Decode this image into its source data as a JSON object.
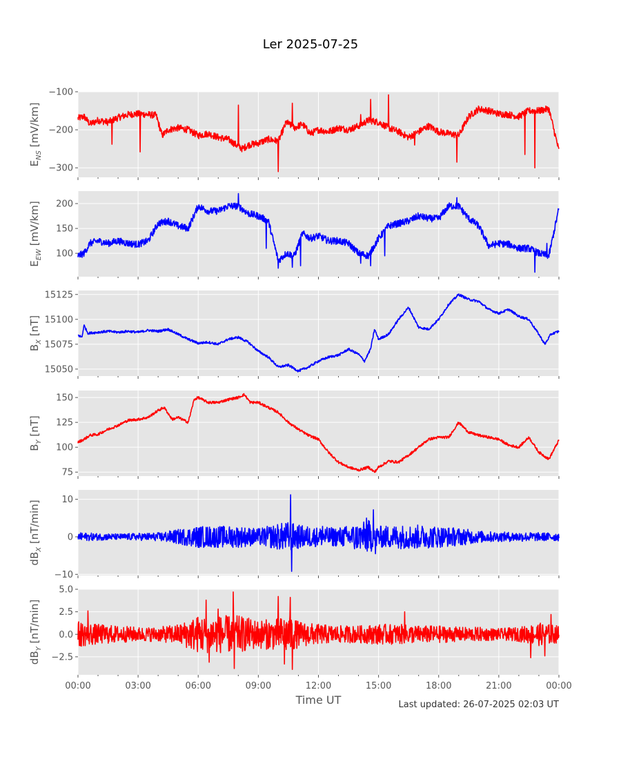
{
  "figure": {
    "title": "Ler 2025-07-25",
    "xlabel": "Time UT",
    "footer": "Last updated: 26-07-2025 02:03 UT"
  },
  "chart_data": [
    {
      "type": "line",
      "id": "ens",
      "ylabel": "E",
      "ylabel_sub": "NS",
      "ylabel_unit": " [mV/km]",
      "color": "#ff0000",
      "ylim": [
        -325,
        -100
      ],
      "yticks": [
        -300,
        -200,
        -100
      ],
      "ytick_labels": [
        "−300",
        "−200",
        "−100"
      ],
      "noise": 9,
      "x": [
        0,
        0.3,
        0.6,
        1.0,
        1.5,
        2.0,
        2.5,
        3.0,
        3.5,
        3.9,
        4.2,
        4.5,
        5.0,
        5.5,
        6.0,
        6.5,
        7.0,
        7.5,
        7.9,
        8.2,
        8.5,
        9.0,
        9.5,
        10.0,
        10.4,
        10.8,
        11.2,
        11.6,
        12.0,
        12.5,
        13.0,
        13.5,
        14.0,
        14.5,
        15.0,
        15.5,
        16.0,
        16.5,
        17.0,
        17.5,
        18.0,
        18.5,
        19.0,
        19.5,
        20.0,
        20.5,
        21.0,
        21.5,
        22.0,
        22.5,
        23.0,
        23.5,
        24.0
      ],
      "y": [
        -170,
        -165,
        -185,
        -175,
        -180,
        -168,
        -160,
        -158,
        -160,
        -162,
        -215,
        -200,
        -195,
        -200,
        -215,
        -210,
        -220,
        -225,
        -240,
        -250,
        -240,
        -235,
        -225,
        -230,
        -180,
        -195,
        -185,
        -210,
        -200,
        -205,
        -195,
        -200,
        -190,
        -175,
        -180,
        -195,
        -205,
        -220,
        -205,
        -190,
        -205,
        -210,
        -215,
        -165,
        -145,
        -150,
        -158,
        -160,
        -165,
        -150,
        -150,
        -145,
        -255
      ],
      "spikes": [
        [
          1.7,
          -238
        ],
        [
          3.1,
          -258
        ],
        [
          8.0,
          -135
        ],
        [
          10.0,
          -310
        ],
        [
          10.7,
          -130
        ],
        [
          14.1,
          -160
        ],
        [
          14.6,
          -120
        ],
        [
          15.5,
          -108
        ],
        [
          16.8,
          -240
        ],
        [
          18.9,
          -285
        ],
        [
          22.3,
          -265
        ],
        [
          22.8,
          -300
        ]
      ]
    },
    {
      "type": "line",
      "id": "eew",
      "ylabel": "E",
      "ylabel_sub": "EW",
      "ylabel_unit": " [mV/km]",
      "color": "#0000ff",
      "ylim": [
        53,
        225
      ],
      "yticks": [
        100,
        150,
        200
      ],
      "ytick_labels": [
        "100",
        "150",
        "200"
      ],
      "noise": 7,
      "x": [
        0,
        0.3,
        0.6,
        1.0,
        1.5,
        2.0,
        2.5,
        3.0,
        3.5,
        4.0,
        4.5,
        5.0,
        5.5,
        6.0,
        6.5,
        7.0,
        7.5,
        8.0,
        8.5,
        9.0,
        9.5,
        10.0,
        10.4,
        10.8,
        11.2,
        11.6,
        12.0,
        12.5,
        13.0,
        13.5,
        14.0,
        14.5,
        15.0,
        15.5,
        16.0,
        16.5,
        17.0,
        17.5,
        18.0,
        18.5,
        19.0,
        19.5,
        20.0,
        20.5,
        21.0,
        21.5,
        22.0,
        22.5,
        23.0,
        23.5,
        24.0
      ],
      "y": [
        95,
        100,
        120,
        125,
        120,
        125,
        120,
        118,
        125,
        160,
        165,
        155,
        150,
        195,
        185,
        185,
        195,
        195,
        180,
        175,
        165,
        85,
        100,
        95,
        140,
        130,
        135,
        125,
        125,
        120,
        100,
        95,
        130,
        155,
        160,
        165,
        175,
        170,
        170,
        195,
        195,
        170,
        155,
        115,
        120,
        118,
        110,
        110,
        100,
        95,
        190
      ],
      "spikes": [
        [
          8.0,
          220
        ],
        [
          9.4,
          110
        ],
        [
          10.0,
          70
        ],
        [
          10.7,
          72
        ],
        [
          11.1,
          75
        ],
        [
          14.1,
          80
        ],
        [
          14.6,
          75
        ],
        [
          15.3,
          95
        ],
        [
          18.9,
          212
        ],
        [
          22.8,
          62
        ],
        [
          23.4,
          120
        ]
      ]
    },
    {
      "type": "line",
      "id": "bx",
      "ylabel": "B",
      "ylabel_sub": "X",
      "ylabel_unit": " [nT]",
      "color": "#0000ff",
      "ylim": [
        15043,
        15129
      ],
      "yticks": [
        15050,
        15075,
        15100,
        15125
      ],
      "ytick_labels": [
        "15050",
        "15075",
        "15100",
        "15125"
      ],
      "noise": 1.2,
      "x": [
        0,
        0.2,
        0.3,
        0.5,
        1.0,
        1.5,
        2.0,
        2.5,
        3.0,
        3.5,
        4.0,
        4.5,
        5.0,
        5.5,
        6.0,
        6.5,
        7.0,
        7.5,
        8.0,
        8.5,
        9.0,
        9.5,
        10.0,
        10.5,
        11.0,
        11.5,
        12.0,
        12.5,
        13.0,
        13.5,
        14.0,
        14.3,
        14.6,
        14.8,
        15.0,
        15.5,
        16.0,
        16.5,
        17.0,
        17.5,
        18.0,
        18.5,
        19.0,
        19.5,
        20.0,
        20.5,
        21.0,
        21.5,
        22.0,
        22.5,
        23.0,
        23.3,
        23.6,
        24.0
      ],
      "y": [
        15084,
        15082,
        15094,
        15086,
        15087,
        15088,
        15087,
        15088,
        15087,
        15089,
        15088,
        15090,
        15085,
        15080,
        15076,
        15077,
        15075,
        15080,
        15082,
        15077,
        15068,
        15062,
        15052,
        15054,
        15048,
        15052,
        15058,
        15062,
        15064,
        15070,
        15065,
        15058,
        15070,
        15090,
        15080,
        15085,
        15100,
        15112,
        15092,
        15090,
        15100,
        15115,
        15125,
        15120,
        15118,
        15110,
        15106,
        15110,
        15103,
        15100,
        15085,
        15075,
        15085,
        15088
      ],
      "spikes": []
    },
    {
      "type": "line",
      "id": "by",
      "ylabel": "B",
      "ylabel_sub": "Y",
      "ylabel_unit": " [nT]",
      "color": "#ff0000",
      "ylim": [
        71,
        157
      ],
      "yticks": [
        75,
        100,
        125,
        150
      ],
      "ytick_labels": [
        "75",
        "100",
        "125",
        "150"
      ],
      "noise": 1.3,
      "x": [
        0,
        0.3,
        0.6,
        1.0,
        1.5,
        2.0,
        2.5,
        3.0,
        3.5,
        4.0,
        4.3,
        4.7,
        5.0,
        5.5,
        5.8,
        6.0,
        6.5,
        7.0,
        7.5,
        8.0,
        8.3,
        8.6,
        9.0,
        9.5,
        10.0,
        10.5,
        11.0,
        11.5,
        12.0,
        12.5,
        13.0,
        13.5,
        14.0,
        14.5,
        14.8,
        15.0,
        15.5,
        16.0,
        16.5,
        17.0,
        17.5,
        18.0,
        18.5,
        19.0,
        19.5,
        20.0,
        20.5,
        21.0,
        21.5,
        22.0,
        22.5,
        23.0,
        23.5,
        24.0
      ],
      "y": [
        105,
        108,
        112,
        113,
        118,
        122,
        127,
        128,
        130,
        137,
        140,
        128,
        130,
        125,
        148,
        150,
        145,
        145,
        148,
        150,
        153,
        145,
        145,
        140,
        135,
        125,
        118,
        112,
        108,
        95,
        85,
        80,
        77,
        80,
        75,
        80,
        86,
        85,
        92,
        100,
        108,
        110,
        110,
        125,
        115,
        112,
        110,
        108,
        102,
        100,
        110,
        95,
        88,
        107
      ],
      "spikes": []
    },
    {
      "type": "line",
      "id": "dbx",
      "ylabel": "dB",
      "ylabel_sub": "X",
      "ylabel_unit": " [nT/min]",
      "color": "#0000ff",
      "ylim": [
        -10.3,
        12.5
      ],
      "yticks": [
        -10,
        0,
        10
      ],
      "ytick_labels": [
        "−10",
        "0",
        "10"
      ],
      "noise": 0,
      "x": [
        0,
        2,
        4,
        6,
        8,
        9,
        10,
        10.5,
        11,
        12,
        13,
        14,
        14.5,
        15,
        16,
        17,
        18,
        19,
        20,
        21,
        22,
        23,
        24
      ],
      "amp": [
        0.7,
        0.5,
        0.7,
        1.8,
        1.8,
        1.4,
        2.2,
        2.5,
        2.0,
        1.6,
        1.6,
        2.2,
        2.8,
        1.8,
        2.0,
        2.0,
        1.8,
        1.5,
        1.0,
        0.8,
        0.8,
        0.7,
        0.7
      ],
      "baseline": 0,
      "spikes": [
        [
          10.62,
          11.2
        ],
        [
          10.66,
          -9.2
        ],
        [
          14.4,
          5.0
        ],
        [
          14.75,
          7.2
        ],
        [
          14.85,
          -4.5
        ],
        [
          12.2,
          2.8
        ],
        [
          13.8,
          -3.2
        ],
        [
          6.0,
          -2.8
        ],
        [
          16.8,
          -3.0
        ]
      ]
    },
    {
      "type": "line",
      "id": "dby",
      "ylabel": "dB",
      "ylabel_sub": "Y",
      "ylabel_unit": " [nT/min]",
      "color": "#ff0000",
      "ylim": [
        -4.5,
        5.0
      ],
      "yticks": [
        -2.5,
        0.0,
        2.5,
        5.0
      ],
      "ytick_labels": [
        "−2.5",
        "0.0",
        "2.5",
        "5.0"
      ],
      "noise": 0,
      "x": [
        0,
        1,
        2,
        3,
        4,
        5,
        6,
        7,
        8,
        9,
        10,
        10.5,
        11,
        12,
        13,
        14,
        15,
        16,
        17,
        18,
        19,
        20,
        21,
        22,
        23,
        24
      ],
      "amp": [
        0.9,
        0.7,
        0.6,
        0.5,
        0.5,
        0.7,
        1.3,
        1.3,
        1.3,
        1.0,
        1.1,
        1.4,
        0.9,
        0.7,
        0.6,
        0.6,
        0.7,
        0.7,
        0.6,
        0.6,
        0.5,
        0.5,
        0.4,
        0.5,
        0.8,
        0.6
      ],
      "baseline": 0,
      "spikes": [
        [
          0.5,
          2.6
        ],
        [
          6.4,
          3.8
        ],
        [
          6.55,
          -3.1
        ],
        [
          7.75,
          4.7
        ],
        [
          7.8,
          -3.8
        ],
        [
          10.0,
          4.2
        ],
        [
          10.3,
          -3.3
        ],
        [
          10.6,
          4.1
        ],
        [
          10.7,
          -3.9
        ],
        [
          7.0,
          2.8
        ],
        [
          16.3,
          2.5
        ],
        [
          22.6,
          -2.6
        ],
        [
          23.6,
          2.2
        ],
        [
          23.3,
          -2.4
        ]
      ]
    }
  ],
  "xaxis": {
    "xlim": [
      0,
      24
    ],
    "ticks": [
      0,
      3,
      6,
      9,
      12,
      15,
      18,
      21,
      24
    ],
    "tick_labels": [
      "00:00",
      "03:00",
      "06:00",
      "09:00",
      "12:00",
      "15:00",
      "18:00",
      "21:00",
      "00:00"
    ],
    "minor_step": 1,
    "grid": true
  }
}
